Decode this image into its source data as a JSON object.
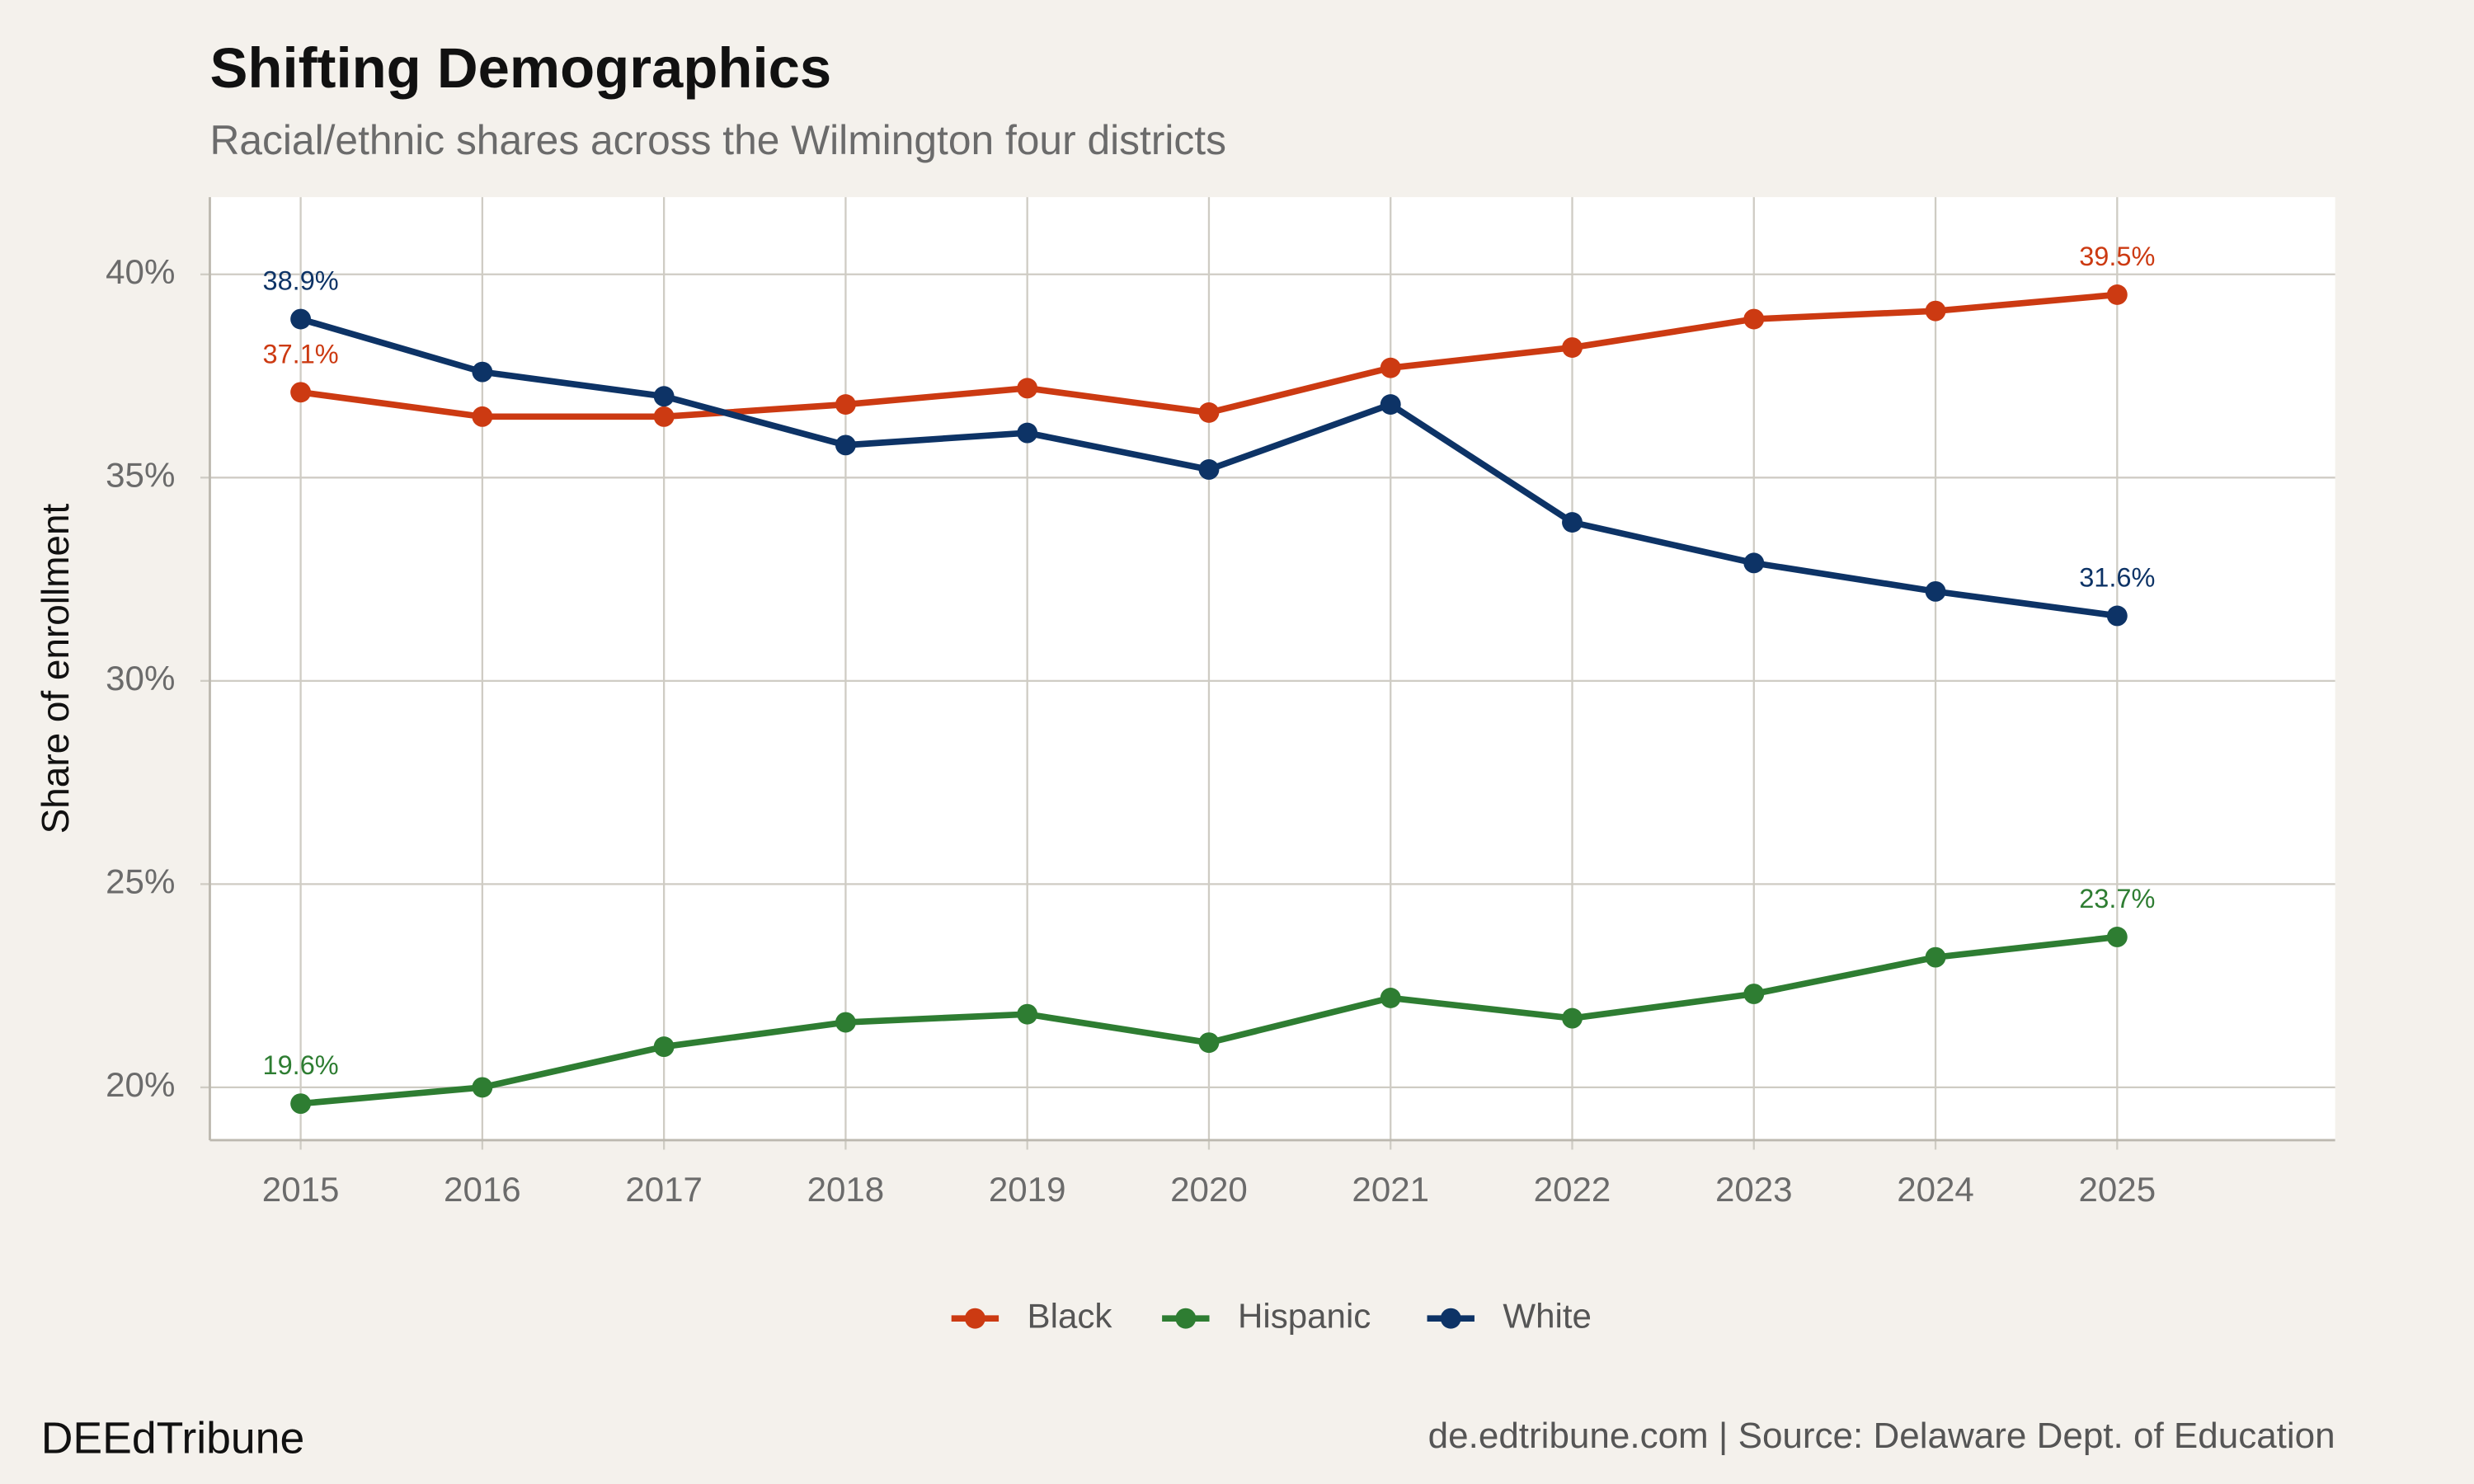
{
  "chart_data": {
    "type": "line",
    "title": "Shifting Demographics",
    "subtitle": "Racial/ethnic shares across the Wilmington four districts",
    "y_label": "Share of enrollment",
    "footer_left": "DEEdTribune",
    "footer_right": "de.edtribune.com | Source: Delaware Dept. of Education",
    "x": [
      2015,
      2016,
      2017,
      2018,
      2019,
      2020,
      2021,
      2022,
      2023,
      2024,
      2025
    ],
    "xlim": [
      2014.5,
      2026.2
    ],
    "xticks": [
      2015,
      2016,
      2017,
      2018,
      2019,
      2020,
      2021,
      2022,
      2023,
      2024,
      2025
    ],
    "ylim": [
      18.7,
      41.9
    ],
    "yticks": [
      {
        "value": 20,
        "label": "20%"
      },
      {
        "value": 25,
        "label": "25%"
      },
      {
        "value": 30,
        "label": "30%"
      },
      {
        "value": 35,
        "label": "35%"
      },
      {
        "value": 40,
        "label": "40%"
      }
    ],
    "grid": true,
    "legend": "bottom",
    "series": [
      {
        "name": "Black",
        "color": "#cc3a12",
        "values": [
          37.1,
          36.5,
          36.5,
          36.8,
          37.2,
          36.6,
          37.7,
          38.2,
          38.9,
          39.1,
          39.5
        ],
        "value_labels": [
          "37.1%",
          null,
          null,
          null,
          null,
          null,
          null,
          null,
          null,
          null,
          "39.5%"
        ]
      },
      {
        "name": "Hispanic",
        "color": "#2e7d32",
        "values": [
          19.6,
          20.0,
          21.0,
          21.6,
          21.8,
          21.1,
          22.2,
          21.7,
          22.3,
          23.2,
          23.7
        ],
        "value_labels": [
          "19.6%",
          null,
          null,
          null,
          null,
          null,
          null,
          null,
          null,
          null,
          "23.7%"
        ]
      },
      {
        "name": "White",
        "color": "#0d3366",
        "values": [
          38.9,
          37.6,
          37.0,
          35.8,
          36.1,
          35.2,
          36.8,
          33.9,
          32.9,
          32.2,
          31.6
        ],
        "value_labels": [
          "38.9%",
          null,
          null,
          null,
          null,
          null,
          null,
          null,
          null,
          null,
          "31.6%"
        ]
      }
    ]
  }
}
